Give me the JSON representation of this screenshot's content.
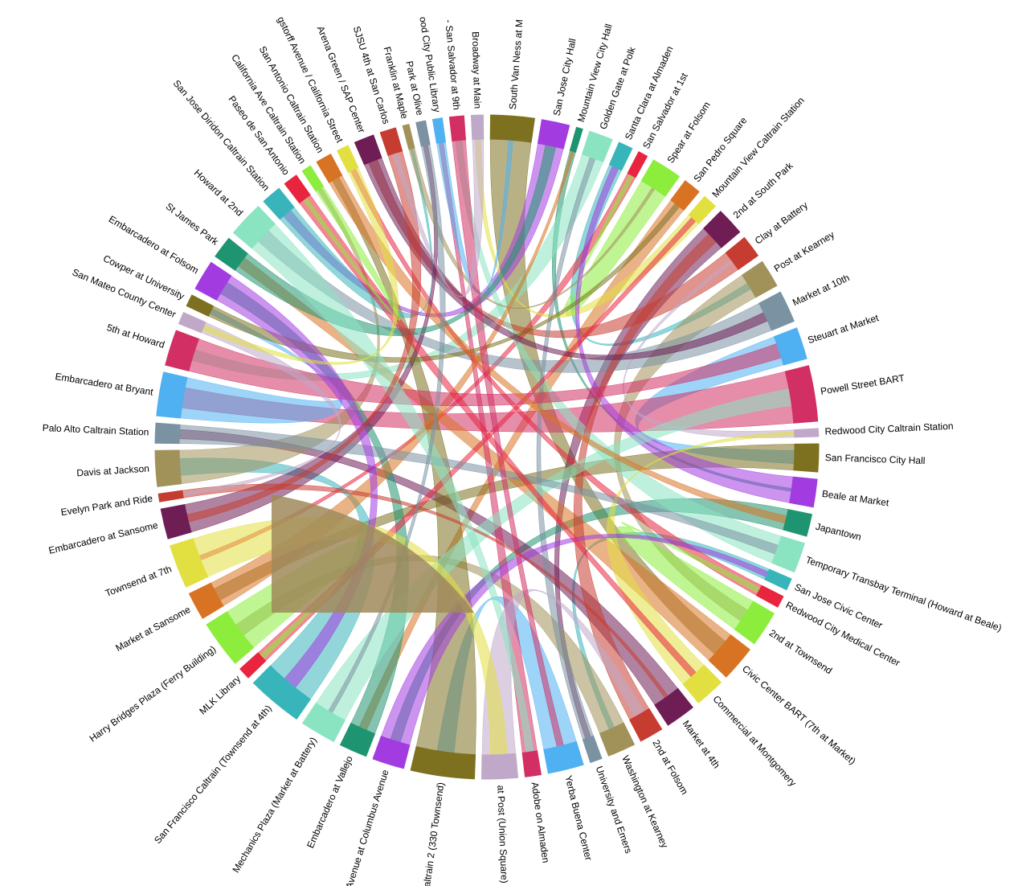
{
  "chart_data": {
    "type": "chord",
    "groups": [
      {
        "name": "South Van Ness at M",
        "value": 55,
        "color": "#7d7120"
      },
      {
        "name": "San Jose City Hall",
        "value": 35,
        "color": "#a23ce0"
      },
      {
        "name": "Mountain View City Hall",
        "value": 8,
        "color": "#1f9470"
      },
      {
        "name": "Golden Gate at Polk",
        "value": 30,
        "color": "#8ae4c2"
      },
      {
        "name": "Santa Clara at Almaden",
        "value": 18,
        "color": "#38b5ba"
      },
      {
        "name": "San Salvador at 1st",
        "value": 12,
        "color": "#e8243e"
      },
      {
        "name": "Spear at Folsom",
        "value": 38,
        "color": "#8ced3c"
      },
      {
        "name": "San Pedro Square",
        "value": 22,
        "color": "#d97324"
      },
      {
        "name": "Mountain View Caltrain Station",
        "value": 18,
        "color": "#e2e040"
      },
      {
        "name": "2nd at South Park",
        "value": 35,
        "color": "#6f1d55"
      },
      {
        "name": "Clay at Battery",
        "value": 28,
        "color": "#c73c30"
      },
      {
        "name": "Post at Kearney",
        "value": 35,
        "color": "#a1925a"
      },
      {
        "name": "Market at 10th",
        "value": 40,
        "color": "#7a92a2"
      },
      {
        "name": "Steuart at Market",
        "value": 40,
        "color": "#4fb0f2"
      },
      {
        "name": "Powell Street BART",
        "value": 70,
        "color": "#d22f64"
      },
      {
        "name": "Redwood City Caltrain Station",
        "value": 10,
        "color": "#c0a8c8"
      },
      {
        "name": "San Francisco City Hall",
        "value": 35,
        "color": "#7d7120"
      },
      {
        "name": "Beale at Market",
        "value": 35,
        "color": "#a23ce0"
      },
      {
        "name": "Japantown",
        "value": 28,
        "color": "#1f9470"
      },
      {
        "name": "Temporary Transbay Terminal (Howard at Beale)",
        "value": 38,
        "color": "#8ae4c2"
      },
      {
        "name": "San Jose Civic Center",
        "value": 15,
        "color": "#38b5ba"
      },
      {
        "name": "Redwood City Medical Center",
        "value": 15,
        "color": "#e8243e"
      },
      {
        "name": "2nd at Townsend",
        "value": 45,
        "color": "#8ced3c"
      },
      {
        "name": "Civic Center BART (7th at Market)",
        "value": 45,
        "color": "#d97324"
      },
      {
        "name": "Commercial at Montgomery",
        "value": 38,
        "color": "#e2e040"
      },
      {
        "name": "Market at 4th",
        "value": 38,
        "color": "#6f1d55"
      },
      {
        "name": "2nd at Folsom",
        "value": 30,
        "color": "#c73c30"
      },
      {
        "name": "Washington at Kearney",
        "value": 35,
        "color": "#a1925a"
      },
      {
        "name": "University and Emers",
        "value": 15,
        "color": "#7a92a2"
      },
      {
        "name": "Yerba Buena Center",
        "value": 45,
        "color": "#4fb0f2"
      },
      {
        "name": "Adobe on Almaden",
        "value": 20,
        "color": "#d22f64"
      },
      {
        "name": "at Post (Union Square)",
        "value": 45,
        "color": "#c0a8c8"
      },
      {
        "name": "Caltrain 2 (330 Townsend)",
        "value": 80,
        "color": "#7d7120"
      },
      {
        "name": "ant Avenue at Columbus Avenue",
        "value": 40,
        "color": "#a23ce0"
      },
      {
        "name": "Embarcadero at Vallejo",
        "value": 35,
        "color": "#1f9470"
      },
      {
        "name": "Mechanics Plaza (Market at Battery)",
        "value": 45,
        "color": "#8ae4c2"
      },
      {
        "name": "San Francisco Caltrain (Townsend at 4th)",
        "value": 70,
        "color": "#38b5ba"
      },
      {
        "name": "MLK Library",
        "value": 15,
        "color": "#e8243e"
      },
      {
        "name": "Harry Bridges Plaza (Ferry Building)",
        "value": 60,
        "color": "#8ced3c"
      },
      {
        "name": "Market at Sansome",
        "value": 35,
        "color": "#d97324"
      },
      {
        "name": "Townsend at 7th",
        "value": 55,
        "color": "#e2e040"
      },
      {
        "name": "Embarcadero at Sansome",
        "value": 38,
        "color": "#6f1d55"
      },
      {
        "name": "Evelyn Park and Ride",
        "value": 10,
        "color": "#c73c30"
      },
      {
        "name": "Davis at Jackson",
        "value": 45,
        "color": "#a1925a"
      },
      {
        "name": "Palo Alto Caltrain Station",
        "value": 25,
        "color": "#7a92a2"
      },
      {
        "name": "Embarcadero at Bryant",
        "value": 55,
        "color": "#4fb0f2"
      },
      {
        "name": "5th at Howard",
        "value": 45,
        "color": "#d22f64"
      },
      {
        "name": "San Mateo County Center",
        "value": 15,
        "color": "#c0a8c8"
      },
      {
        "name": "Cowper at University",
        "value": 15,
        "color": "#7d7120"
      },
      {
        "name": "Embarcadero at Folsom",
        "value": 38,
        "color": "#a23ce0"
      },
      {
        "name": "St James Park",
        "value": 28,
        "color": "#1f9470"
      },
      {
        "name": "Howard at 2nd",
        "value": 45,
        "color": "#8ae4c2"
      },
      {
        "name": "San Jose Diridon Caltrain Station",
        "value": 25,
        "color": "#38b5ba"
      },
      {
        "name": "Paseo de San Antonio",
        "value": 18,
        "color": "#e8243e"
      },
      {
        "name": "California Ave Caltrain Station",
        "value": 12,
        "color": "#8ced3c"
      },
      {
        "name": "San Antonio Caltrain Station",
        "value": 20,
        "color": "#d97324"
      },
      {
        "name": "gstorff Avenue / California Street",
        "value": 15,
        "color": "#e2e040"
      },
      {
        "name": "Arena Green / SAP Center",
        "value": 25,
        "color": "#6f1d55"
      },
      {
        "name": "SJSU 4th at San Carlos",
        "value": 20,
        "color": "#c73c30"
      },
      {
        "name": "Franklin at Maple",
        "value": 8,
        "color": "#a1925a"
      },
      {
        "name": "Park at Olive",
        "value": 12,
        "color": "#7a92a2"
      },
      {
        "name": "ood City Public Library",
        "value": 12,
        "color": "#4fb0f2"
      },
      {
        "name": "- San Salvador at 9th",
        "value": 18,
        "color": "#d22f64"
      },
      {
        "name": "Broadway at Main",
        "value": 15,
        "color": "#c0a8c8"
      }
    ]
  }
}
